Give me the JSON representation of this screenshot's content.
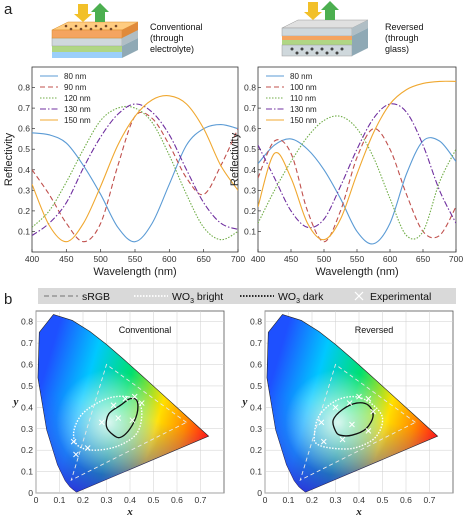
{
  "panel_a_label": "a",
  "panel_b_label": "b",
  "legend_bar": {
    "srgb_label": "sRGB",
    "bright_label_pre": "WO",
    "bright_label_sub": "3",
    "bright_label_post": " bright",
    "dark_label_pre": "WO",
    "dark_label_sub": "3",
    "dark_label_post": " dark",
    "exp_label": "Experimental"
  },
  "colors": {
    "c80": "#5b9bd5",
    "c90": "#c0504d",
    "c100": "#c0504d",
    "c110": "#70ad47",
    "c120": "#70ad47",
    "c130": "#7030a0",
    "c150": "#f0a830",
    "legend_bar_bg": "#d9d9d9"
  },
  "chart_data": [
    {
      "type": "line",
      "id": "conventional-reflectivity",
      "caption": [
        "Conventional",
        "(through",
        "electrolyte)"
      ],
      "xlabel": "Wavelength (nm)",
      "ylabel": "Reflectivity",
      "xlim": [
        400,
        700
      ],
      "ylim": [
        0,
        0.9
      ],
      "xticks": [
        400,
        450,
        500,
        550,
        600,
        650,
        700
      ],
      "yticks": [
        0.1,
        0.2,
        0.3,
        0.4,
        0.5,
        0.6,
        0.7,
        0.8
      ],
      "x": [
        400,
        425,
        450,
        475,
        500,
        525,
        550,
        575,
        600,
        625,
        650,
        675,
        700
      ],
      "series": [
        {
          "name": "80 nm",
          "key": "c80",
          "dash": "",
          "values": [
            0.58,
            0.57,
            0.53,
            0.42,
            0.28,
            0.12,
            0.05,
            0.14,
            0.33,
            0.52,
            0.6,
            0.62,
            0.6
          ]
        },
        {
          "name": "90 nm",
          "key": "c90",
          "dash": "5,3",
          "values": [
            0.4,
            0.28,
            0.14,
            0.05,
            0.14,
            0.42,
            0.66,
            0.65,
            0.52,
            0.36,
            0.28,
            0.42,
            0.6
          ]
        },
        {
          "name": "120 nm",
          "key": "c120",
          "dash": "1.5,1.5",
          "values": [
            0.12,
            0.2,
            0.34,
            0.5,
            0.64,
            0.7,
            0.7,
            0.63,
            0.47,
            0.28,
            0.12,
            0.06,
            0.1
          ]
        },
        {
          "name": "130 nm",
          "key": "c130",
          "dash": "6,2,1.5,2",
          "values": [
            0.08,
            0.14,
            0.24,
            0.41,
            0.56,
            0.67,
            0.72,
            0.68,
            0.57,
            0.4,
            0.24,
            0.14,
            0.11
          ]
        },
        {
          "name": "150 nm",
          "key": "c150",
          "dash": "",
          "values": [
            0.33,
            0.13,
            0.05,
            0.14,
            0.32,
            0.52,
            0.66,
            0.74,
            0.76,
            0.72,
            0.6,
            0.42,
            0.3
          ]
        }
      ]
    },
    {
      "type": "line",
      "id": "reversed-reflectivity",
      "caption": [
        "Reversed",
        "(through",
        "glass)"
      ],
      "xlabel": "Wavelength (nm)",
      "ylabel": "Reflectivity",
      "xlim": [
        400,
        700
      ],
      "ylim": [
        0,
        0.9
      ],
      "xticks": [
        400,
        450,
        500,
        550,
        600,
        650,
        700
      ],
      "yticks": [
        0.1,
        0.2,
        0.3,
        0.4,
        0.5,
        0.6,
        0.7,
        0.8
      ],
      "x": [
        400,
        425,
        450,
        475,
        500,
        525,
        550,
        575,
        600,
        625,
        650,
        675,
        700
      ],
      "series": [
        {
          "name": "80 nm",
          "key": "c80",
          "dash": "",
          "values": [
            0.43,
            0.52,
            0.55,
            0.5,
            0.4,
            0.26,
            0.1,
            0.04,
            0.14,
            0.38,
            0.54,
            0.54,
            0.44
          ]
        },
        {
          "name": "100 nm",
          "key": "c100",
          "dash": "5,3",
          "values": [
            0.36,
            0.54,
            0.48,
            0.2,
            0.05,
            0.2,
            0.46,
            0.6,
            0.5,
            0.28,
            0.1,
            0.08,
            0.22
          ]
        },
        {
          "name": "110 nm",
          "key": "c110",
          "dash": "1.5,1.5",
          "values": [
            0.14,
            0.3,
            0.44,
            0.56,
            0.64,
            0.66,
            0.6,
            0.46,
            0.26,
            0.08,
            0.1,
            0.34,
            0.5
          ]
        },
        {
          "name": "130 nm",
          "key": "c130",
          "dash": "6,2,1.5,2",
          "values": [
            0.52,
            0.36,
            0.2,
            0.12,
            0.16,
            0.32,
            0.5,
            0.65,
            0.72,
            0.68,
            0.52,
            0.3,
            0.14
          ]
        },
        {
          "name": "150 nm",
          "key": "c150",
          "dash": "",
          "values": [
            0.22,
            0.48,
            0.36,
            0.14,
            0.06,
            0.16,
            0.38,
            0.58,
            0.72,
            0.79,
            0.82,
            0.83,
            0.83
          ]
        }
      ]
    },
    {
      "type": "scatter",
      "id": "conventional-chromaticity",
      "title": "Conventional",
      "xlabel": "x",
      "ylabel": "y",
      "xlim": [
        0,
        0.8
      ],
      "ylim": [
        0,
        0.85
      ],
      "xticks": [
        0,
        0.1,
        0.2,
        0.3,
        0.4,
        0.5,
        0.6,
        0.7
      ],
      "yticks": [
        0,
        0.1,
        0.2,
        0.3,
        0.4,
        0.5,
        0.6,
        0.7,
        0.8
      ],
      "xtick_labels": [
        "0",
        "0.1",
        "0.2",
        "0.3",
        "0.4",
        "0.5",
        "0.6",
        "0.7"
      ],
      "ytick_labels": [
        "0",
        "0.1",
        "0.2",
        "0.3",
        "0.4",
        "0.5",
        "0.6",
        "0.7",
        "0.8"
      ],
      "srgb": [
        [
          0.64,
          0.33
        ],
        [
          0.3,
          0.6
        ],
        [
          0.15,
          0.06
        ]
      ],
      "bright": [
        [
          0.16,
          0.28
        ],
        [
          0.19,
          0.36
        ],
        [
          0.26,
          0.42
        ],
        [
          0.34,
          0.45
        ],
        [
          0.42,
          0.44
        ],
        [
          0.45,
          0.38
        ],
        [
          0.43,
          0.28
        ],
        [
          0.35,
          0.22
        ],
        [
          0.25,
          0.2
        ],
        [
          0.18,
          0.22
        ]
      ],
      "dark": [
        [
          0.33,
          0.27
        ],
        [
          0.3,
          0.31
        ],
        [
          0.31,
          0.37
        ],
        [
          0.36,
          0.41
        ],
        [
          0.4,
          0.44
        ],
        [
          0.43,
          0.43
        ],
        [
          0.43,
          0.37
        ],
        [
          0.4,
          0.3
        ],
        [
          0.36,
          0.26
        ]
      ],
      "experimental": [
        [
          0.16,
          0.24
        ],
        [
          0.17,
          0.18
        ],
        [
          0.22,
          0.21
        ],
        [
          0.28,
          0.33
        ],
        [
          0.33,
          0.41
        ],
        [
          0.38,
          0.44
        ],
        [
          0.42,
          0.45
        ],
        [
          0.45,
          0.42
        ],
        [
          0.41,
          0.34
        ],
        [
          0.35,
          0.35
        ]
      ]
    },
    {
      "type": "scatter",
      "id": "reversed-chromaticity",
      "title": "Reversed",
      "xlabel": "x",
      "ylabel": "y",
      "xlim": [
        0,
        0.8
      ],
      "ylim": [
        0,
        0.85
      ],
      "xticks": [
        0,
        0.1,
        0.2,
        0.3,
        0.4,
        0.5,
        0.6,
        0.7
      ],
      "yticks": [
        0,
        0.1,
        0.2,
        0.3,
        0.4,
        0.5,
        0.6,
        0.7,
        0.8
      ],
      "xtick_labels": [
        "0",
        "0.1",
        "0.2",
        "0.3",
        "0.4",
        "0.5",
        "0.6",
        "0.7"
      ],
      "ytick_labels": [
        "0",
        "0.1",
        "0.2",
        "0.3",
        "0.4",
        "0.5",
        "0.6",
        "0.7",
        "0.8"
      ],
      "srgb": [
        [
          0.64,
          0.33
        ],
        [
          0.3,
          0.6
        ],
        [
          0.15,
          0.06
        ]
      ],
      "bright": [
        [
          0.21,
          0.27
        ],
        [
          0.23,
          0.36
        ],
        [
          0.3,
          0.43
        ],
        [
          0.38,
          0.45
        ],
        [
          0.45,
          0.42
        ],
        [
          0.5,
          0.35
        ],
        [
          0.47,
          0.26
        ],
        [
          0.38,
          0.21
        ],
        [
          0.28,
          0.21
        ],
        [
          0.22,
          0.23
        ]
      ],
      "dark": [
        [
          0.3,
          0.29
        ],
        [
          0.29,
          0.34
        ],
        [
          0.33,
          0.39
        ],
        [
          0.39,
          0.42
        ],
        [
          0.44,
          0.41
        ],
        [
          0.46,
          0.36
        ],
        [
          0.43,
          0.3
        ],
        [
          0.37,
          0.27
        ],
        [
          0.32,
          0.27
        ]
      ],
      "experimental": [
        [
          0.24,
          0.33
        ],
        [
          0.25,
          0.24
        ],
        [
          0.3,
          0.4
        ],
        [
          0.36,
          0.42
        ],
        [
          0.4,
          0.45
        ],
        [
          0.44,
          0.44
        ],
        [
          0.46,
          0.38
        ],
        [
          0.44,
          0.29
        ],
        [
          0.37,
          0.32
        ],
        [
          0.33,
          0.25
        ]
      ]
    }
  ]
}
